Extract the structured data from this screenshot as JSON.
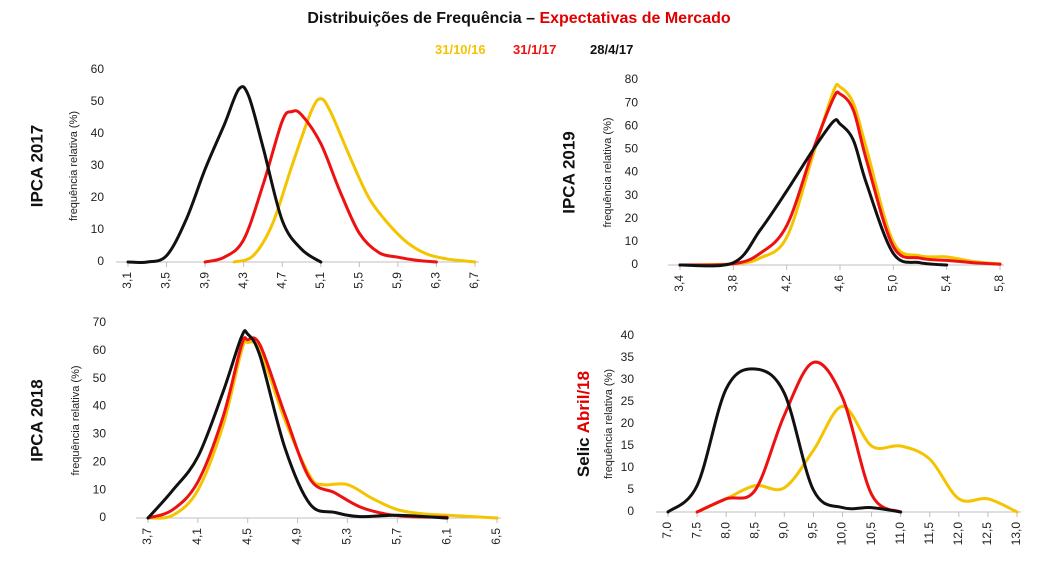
{
  "title": {
    "prefix": "Distribuições de Frequência – ",
    "highlight": "Expectativas de Mercado"
  },
  "legend": [
    {
      "label": "31/10/16",
      "color": "#f5c400"
    },
    {
      "label": "31/1/17",
      "color": "#ee1111"
    },
    {
      "label": "28/4/17",
      "color": "#111111"
    }
  ],
  "chart_data": [
    {
      "type": "line",
      "panel_title": "IPCA 2017",
      "ylabel": "frequência relativa (%)",
      "ylim": [
        0,
        60
      ],
      "yticks": [
        0,
        10,
        20,
        30,
        40,
        50,
        60
      ],
      "xlim": [
        3.1,
        6.7
      ],
      "xticks": [
        "3,1",
        "3,5",
        "3,9",
        "4,3",
        "4,7",
        "5,1",
        "5,5",
        "5,9",
        "6,3",
        "6,7"
      ],
      "grid": false,
      "series": [
        {
          "name": "31/10/16",
          "color": "#f5c400",
          "points": [
            [
              4.2,
              0
            ],
            [
              4.4,
              2
            ],
            [
              4.6,
              12
            ],
            [
              4.8,
              30
            ],
            [
              5.0,
              47
            ],
            [
              5.1,
              51
            ],
            [
              5.2,
              47
            ],
            [
              5.4,
              33
            ],
            [
              5.6,
              20
            ],
            [
              5.8,
              12
            ],
            [
              6.0,
              6
            ],
            [
              6.2,
              2.5
            ],
            [
              6.4,
              1
            ],
            [
              6.6,
              0.3
            ],
            [
              6.7,
              0
            ]
          ]
        },
        {
          "name": "31/1/17",
          "color": "#ee1111",
          "points": [
            [
              3.9,
              0
            ],
            [
              4.1,
              1.5
            ],
            [
              4.3,
              7
            ],
            [
              4.5,
              24
            ],
            [
              4.7,
              44
            ],
            [
              4.8,
              47
            ],
            [
              4.9,
              46
            ],
            [
              5.1,
              37
            ],
            [
              5.3,
              22
            ],
            [
              5.5,
              9
            ],
            [
              5.7,
              3
            ],
            [
              5.9,
              1.5
            ],
            [
              6.1,
              0.5
            ],
            [
              6.3,
              0
            ]
          ]
        },
        {
          "name": "28/4/17",
          "color": "#111111",
          "points": [
            [
              3.1,
              0
            ],
            [
              3.3,
              0
            ],
            [
              3.5,
              2
            ],
            [
              3.7,
              13
            ],
            [
              3.9,
              29
            ],
            [
              4.1,
              43
            ],
            [
              4.25,
              54
            ],
            [
              4.35,
              52
            ],
            [
              4.5,
              36
            ],
            [
              4.7,
              13
            ],
            [
              4.9,
              4
            ],
            [
              5.1,
              0
            ]
          ]
        }
      ]
    },
    {
      "type": "line",
      "panel_title": "IPCA 2019",
      "ylabel": "frequência relativa (%)",
      "ylim": [
        0,
        80
      ],
      "yticks": [
        0,
        10,
        20,
        30,
        40,
        50,
        60,
        70,
        80
      ],
      "xlim": [
        3.4,
        5.8
      ],
      "xticks": [
        "3,4",
        "3,8",
        "4,2",
        "4,6",
        "5,0",
        "5,4",
        "5,8"
      ],
      "grid": false,
      "series": [
        {
          "name": "31/10/16",
          "color": "#f5c400",
          "points": [
            [
              3.4,
              0
            ],
            [
              3.8,
              0.5
            ],
            [
              4.0,
              3
            ],
            [
              4.2,
              12
            ],
            [
              4.4,
              48
            ],
            [
              4.55,
              75
            ],
            [
              4.6,
              77
            ],
            [
              4.7,
              70
            ],
            [
              4.8,
              50
            ],
            [
              5.0,
              10
            ],
            [
              5.2,
              4
            ],
            [
              5.4,
              3.5
            ],
            [
              5.6,
              1.5
            ],
            [
              5.8,
              0.5
            ]
          ]
        },
        {
          "name": "31/1/17",
          "color": "#ee1111",
          "points": [
            [
              3.4,
              0
            ],
            [
              3.8,
              0.5
            ],
            [
              4.0,
              5
            ],
            [
              4.2,
              17
            ],
            [
              4.4,
              50
            ],
            [
              4.55,
              72
            ],
            [
              4.6,
              74
            ],
            [
              4.7,
              67
            ],
            [
              4.8,
              45
            ],
            [
              5.0,
              8
            ],
            [
              5.2,
              3
            ],
            [
              5.4,
              2
            ],
            [
              5.6,
              1
            ],
            [
              5.8,
              0.3
            ]
          ]
        },
        {
          "name": "28/4/17",
          "color": "#111111",
          "points": [
            [
              3.4,
              0
            ],
            [
              3.8,
              1
            ],
            [
              4.0,
              15
            ],
            [
              4.2,
              32
            ],
            [
              4.4,
              50
            ],
            [
              4.55,
              62
            ],
            [
              4.6,
              61
            ],
            [
              4.7,
              54
            ],
            [
              4.8,
              35
            ],
            [
              5.0,
              5
            ],
            [
              5.2,
              1
            ],
            [
              5.4,
              0
            ]
          ]
        }
      ]
    },
    {
      "type": "line",
      "panel_title": "IPCA 2018",
      "ylabel": "frequência relativa (%)",
      "ylim": [
        0,
        70
      ],
      "yticks": [
        0,
        10,
        20,
        30,
        40,
        50,
        60,
        70
      ],
      "xlim": [
        3.7,
        6.5
      ],
      "xticks": [
        "3,7",
        "4,1",
        "4,5",
        "4,9",
        "5,3",
        "5,7",
        "6,1",
        "6,5"
      ],
      "grid": false,
      "series": [
        {
          "name": "31/10/16",
          "color": "#f5c400",
          "points": [
            [
              3.7,
              0
            ],
            [
              3.9,
              1
            ],
            [
              4.1,
              10
            ],
            [
              4.3,
              33
            ],
            [
              4.45,
              60
            ],
            [
              4.5,
              63
            ],
            [
              4.6,
              60
            ],
            [
              4.8,
              35
            ],
            [
              5.0,
              15
            ],
            [
              5.1,
              12
            ],
            [
              5.3,
              12
            ],
            [
              5.5,
              7
            ],
            [
              5.7,
              3
            ],
            [
              5.9,
              1.5
            ],
            [
              6.1,
              1
            ],
            [
              6.3,
              0.5
            ],
            [
              6.5,
              0
            ]
          ]
        },
        {
          "name": "31/1/17",
          "color": "#ee1111",
          "points": [
            [
              3.7,
              0
            ],
            [
              3.9,
              3
            ],
            [
              4.1,
              13
            ],
            [
              4.3,
              36
            ],
            [
              4.45,
              62
            ],
            [
              4.5,
              64
            ],
            [
              4.6,
              62
            ],
            [
              4.8,
              37
            ],
            [
              5.0,
              14
            ],
            [
              5.2,
              9
            ],
            [
              5.4,
              4
            ],
            [
              5.6,
              1.5
            ],
            [
              5.8,
              0.5
            ],
            [
              6.1,
              0.3
            ]
          ]
        },
        {
          "name": "28/4/17",
          "color": "#111111",
          "points": [
            [
              3.7,
              0
            ],
            [
              3.9,
              10
            ],
            [
              4.1,
              22
            ],
            [
              4.3,
              45
            ],
            [
              4.45,
              65
            ],
            [
              4.5,
              66
            ],
            [
              4.6,
              58
            ],
            [
              4.8,
              25
            ],
            [
              5.0,
              5
            ],
            [
              5.2,
              2
            ],
            [
              5.4,
              0.5
            ],
            [
              5.7,
              1
            ],
            [
              6.1,
              0
            ]
          ]
        }
      ]
    },
    {
      "type": "line",
      "panel_title": "Selic Abril/18",
      "panel_title_parts": [
        "Selic ",
        "Abril/18"
      ],
      "ylabel": "frequência relativa (%)",
      "ylim": [
        0,
        40
      ],
      "yticks": [
        0,
        5,
        10,
        15,
        20,
        25,
        30,
        35,
        40
      ],
      "xlim": [
        7.0,
        13.0
      ],
      "xticks": [
        "7,0",
        "7,5",
        "8,0",
        "8,5",
        "9,0",
        "9,5",
        "10,0",
        "10,5",
        "11,0",
        "11,5",
        "12,0",
        "12,5",
        "13,0"
      ],
      "grid": false,
      "series": [
        {
          "name": "31/10/16",
          "color": "#f5c400",
          "points": [
            [
              7.5,
              0
            ],
            [
              8.0,
              3
            ],
            [
              8.5,
              6
            ],
            [
              9.0,
              5.5
            ],
            [
              9.5,
              14
            ],
            [
              10.0,
              24
            ],
            [
              10.5,
              15
            ],
            [
              11.0,
              15
            ],
            [
              11.5,
              12
            ],
            [
              12.0,
              3
            ],
            [
              12.5,
              3
            ],
            [
              13.0,
              0
            ]
          ]
        },
        {
          "name": "31/1/17",
          "color": "#ee1111",
          "points": [
            [
              7.5,
              0
            ],
            [
              8.0,
              3
            ],
            [
              8.5,
              5
            ],
            [
              9.0,
              22
            ],
            [
              9.5,
              34
            ],
            [
              10.0,
              26
            ],
            [
              10.5,
              4
            ],
            [
              11.0,
              0
            ]
          ]
        },
        {
          "name": "28/4/17",
          "color": "#111111",
          "points": [
            [
              7.0,
              0
            ],
            [
              7.5,
              6
            ],
            [
              8.0,
              28
            ],
            [
              8.5,
              32.5
            ],
            [
              9.0,
              27
            ],
            [
              9.5,
              5
            ],
            [
              10.0,
              1
            ],
            [
              10.5,
              1
            ],
            [
              11.0,
              0
            ]
          ]
        }
      ]
    }
  ]
}
